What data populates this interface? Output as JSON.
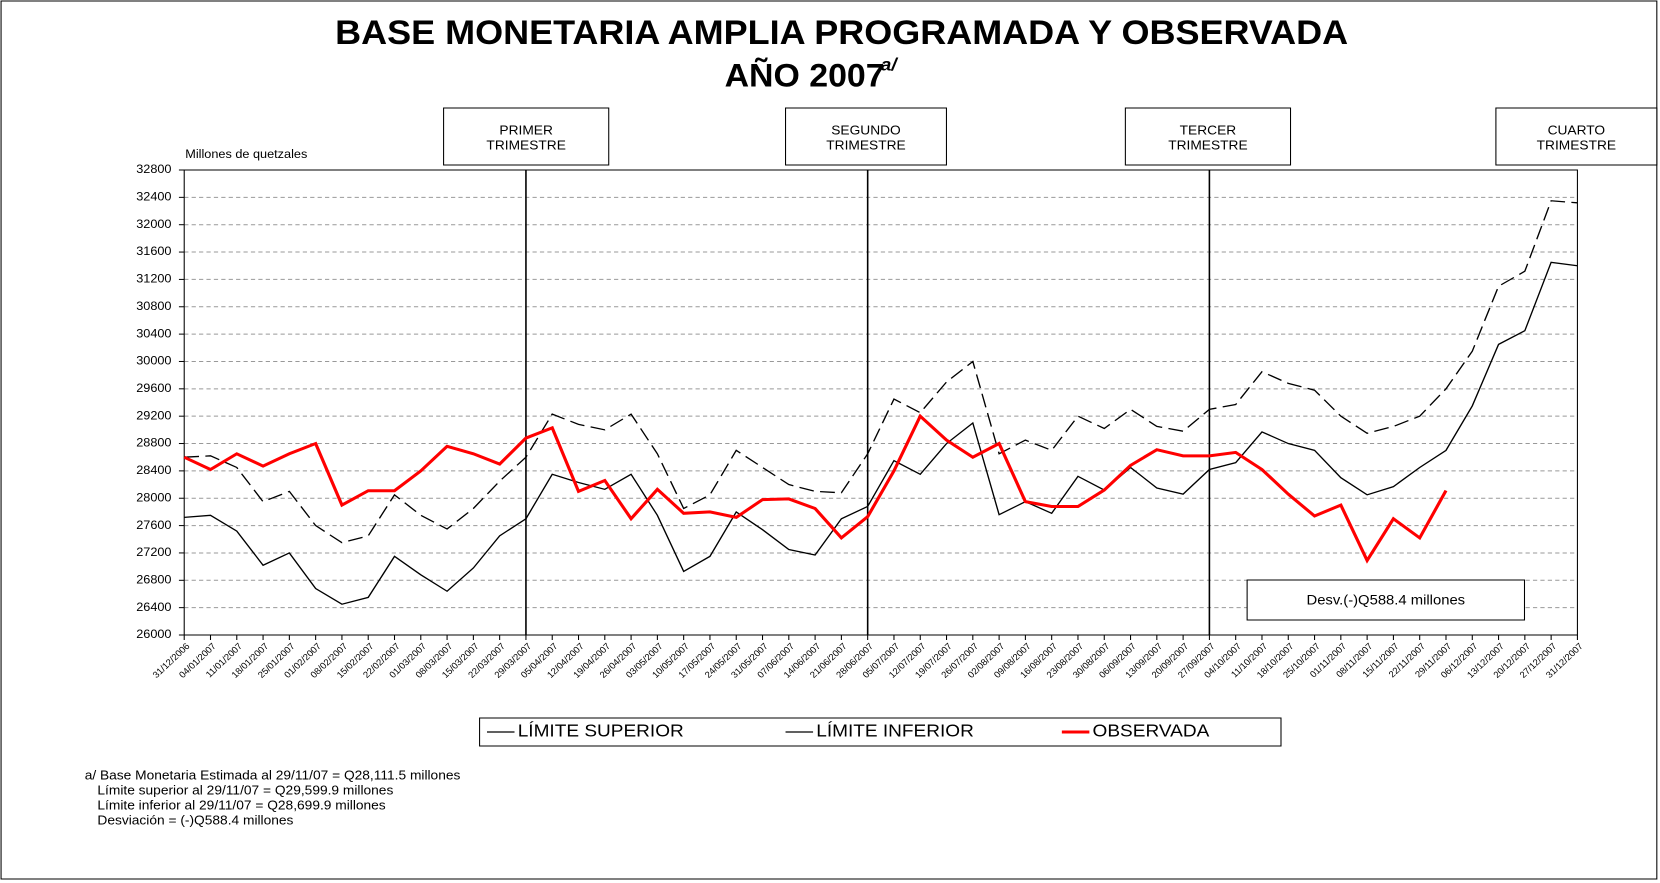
{
  "chart_data": {
    "type": "line",
    "title": "BASE MONETARIA AMPLIA PROGRAMADA Y OBSERVADA",
    "subtitle": "AÑO 2007",
    "subtitle_note": "a/",
    "y_label": "Millones de quetzales",
    "quarters": [
      [
        "PRIMER",
        "TRIMESTRE"
      ],
      [
        "SEGUNDO",
        "TRIMESTRE"
      ],
      [
        "TERCER",
        "TRIMESTRE"
      ],
      [
        "CUARTO",
        "TRIMESTRE"
      ]
    ],
    "annotation": "Desv.(-)Q588.4 millones",
    "footnotes": [
      "a/ Base Monetaria Estimada al 29/11/07 = Q28,111.5 millones",
      "Límite superior al  29/11/07 = Q29,599.9 millones",
      "Límite inferior  al  29/11/07 = Q28,699.9 millones",
      "Desviación = (-)Q588.4 millones"
    ],
    "categories": [
      "31/12/2006",
      "04/01/2007",
      "11/01/2007",
      "18/01/2007",
      "25/01/2007",
      "01/02/2007",
      "08/02/2007",
      "15/02/2007",
      "22/02/2007",
      "01/03/2007",
      "08/03/2007",
      "15/03/2007",
      "22/03/2007",
      "29/03/2007",
      "05/04/2007",
      "12/04/2007",
      "19/04/2007",
      "26/04/2007",
      "03/05/2007",
      "10/05/2007",
      "17/05/2007",
      "24/05/2007",
      "31/05/2007",
      "07/06/2007",
      "14/06/2007",
      "21/06/2007",
      "28/06/2007",
      "05/07/2007",
      "12/07/2007",
      "19/07/2007",
      "26/07/2007",
      "02/08/2007",
      "09/08/2007",
      "16/08/2007",
      "23/08/2007",
      "30/08/2007",
      "06/09/2007",
      "13/09/2007",
      "20/09/2007",
      "27/09/2007",
      "04/10/2007",
      "11/10/2007",
      "18/10/2007",
      "25/10/2007",
      "01/11/2007",
      "08/11/2007",
      "15/11/2007",
      "22/11/2007",
      "29/11/2007",
      "06/12/2007",
      "13/12/2007",
      "20/12/2007",
      "27/12/2007",
      "31/12/2007"
    ],
    "series": [
      {
        "name": "LÍMITE SUPERIOR",
        "color": "#000000",
        "line_style": "dashed",
        "values": [
          28600,
          28620,
          28450,
          27950,
          28100,
          27600,
          27350,
          27450,
          28050,
          27750,
          27550,
          27850,
          28250,
          28600,
          29230,
          29080,
          29000,
          29230,
          28650,
          27850,
          28050,
          28700,
          28450,
          28200,
          28100,
          28080,
          28650,
          29450,
          29250,
          29700,
          30000,
          28650,
          28850,
          28700,
          29200,
          29020,
          29300,
          29050,
          28980,
          29300,
          29370,
          29850,
          29680,
          29580,
          29200,
          28950,
          29050,
          29200,
          29599.9,
          30150,
          31100,
          31320,
          32350,
          32320
        ]
      },
      {
        "name": "LÍMITE INFERIOR",
        "color": "#000000",
        "line_style": "solid",
        "values": [
          27720,
          27750,
          27520,
          27020,
          27200,
          26680,
          26450,
          26550,
          27150,
          26880,
          26640,
          26980,
          27450,
          27700,
          28350,
          28230,
          28130,
          28350,
          27750,
          26930,
          27150,
          27800,
          27540,
          27250,
          27170,
          27700,
          27880,
          28550,
          28350,
          28800,
          29100,
          27760,
          27950,
          27780,
          28320,
          28120,
          28450,
          28150,
          28060,
          28420,
          28520,
          28970,
          28800,
          28700,
          28300,
          28050,
          28170,
          28450,
          28699.9,
          29350,
          30250,
          30450,
          31450,
          31400
        ]
      },
      {
        "name": "OBSERVADA",
        "color": "#ff0000",
        "line_style": "solid",
        "values": [
          28600,
          28420,
          28650,
          28470,
          28650,
          28800,
          27900,
          28110,
          28110,
          28400,
          28760,
          28650,
          28500,
          28880,
          29030,
          28100,
          28260,
          27700,
          28130,
          27780,
          27800,
          27720,
          27980,
          27990,
          27850,
          27420,
          27730,
          28400,
          29200,
          28850,
          28600,
          28800,
          27950,
          27880,
          27880,
          28120,
          28480,
          28710,
          28620,
          28620,
          28670,
          28420,
          28060,
          27740,
          27900,
          27090,
          27700,
          27420,
          28111.5,
          null,
          null,
          null,
          null,
          null
        ]
      }
    ],
    "ylim": [
      26000,
      32800
    ],
    "yticks": [
      26000,
      26400,
      26800,
      27200,
      27600,
      28000,
      28400,
      28800,
      29200,
      29600,
      30000,
      30400,
      30800,
      31200,
      31600,
      32000,
      32400,
      32800
    ],
    "grid": true
  }
}
